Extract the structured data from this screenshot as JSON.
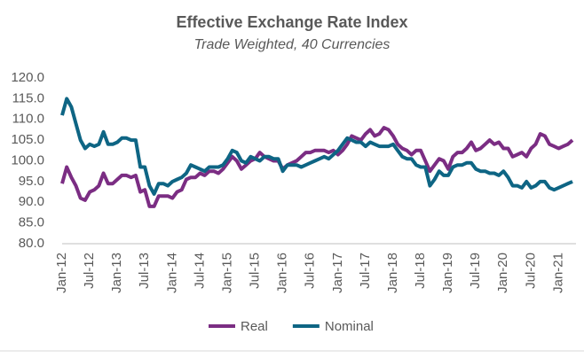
{
  "chart_data": {
    "type": "line",
    "title": "Effective Exchange Rate Index",
    "subtitle": "Trade Weighted, 40 Currencies",
    "categories": [
      "Jan-12",
      null,
      null,
      null,
      null,
      null,
      "Jul-12",
      null,
      null,
      null,
      null,
      null,
      "Jan-13",
      null,
      null,
      null,
      null,
      null,
      "Jul-13",
      null,
      null,
      null,
      null,
      null,
      "Jan-14",
      null,
      null,
      null,
      null,
      null,
      "Jul-14",
      null,
      null,
      null,
      null,
      null,
      "Jan-15",
      null,
      null,
      null,
      null,
      null,
      "Jul-15",
      null,
      null,
      null,
      null,
      null,
      "Jan-16",
      null,
      null,
      null,
      null,
      null,
      "Jul-16",
      null,
      null,
      null,
      null,
      null,
      "Jan-17",
      null,
      null,
      null,
      null,
      null,
      "Jul-17",
      null,
      null,
      null,
      null,
      null,
      "Jan-18",
      null,
      null,
      null,
      null,
      null,
      "Jul-18",
      null,
      null,
      null,
      null,
      null,
      "Jan-19",
      null,
      null,
      null,
      null,
      null,
      "Jul-19",
      null,
      null,
      null,
      null,
      null,
      "Jan-20",
      null,
      null,
      null,
      null,
      null,
      "Jul-20",
      null,
      null,
      null,
      null,
      null,
      "Jan-21",
      null,
      null,
      null
    ],
    "series": [
      {
        "name": "Real",
        "color": "#7b2d83",
        "values": [
          94.5,
          98.5,
          96,
          94,
          91,
          90.5,
          92.5,
          93,
          94,
          97,
          94.5,
          94.5,
          95.5,
          96.5,
          96.5,
          96,
          96.5,
          92.5,
          93,
          89,
          89,
          91.5,
          91.5,
          91.5,
          91,
          92.5,
          93,
          95.5,
          96,
          96,
          97,
          96.5,
          97.5,
          97.5,
          97,
          98,
          99.5,
          101,
          100,
          98,
          99,
          100,
          100.5,
          102,
          101,
          100.5,
          100,
          100,
          98,
          99,
          99.5,
          100,
          101,
          102,
          102,
          102.5,
          102.5,
          102.5,
          102,
          102.5,
          101.5,
          102.5,
          104,
          106,
          105.5,
          105,
          106.5,
          107.5,
          106,
          106.5,
          108,
          107.5,
          106,
          104,
          103,
          102.5,
          101.5,
          102.5,
          102.5,
          100,
          97.5,
          99,
          100.5,
          100,
          98,
          101,
          102,
          102,
          103,
          104.5,
          102.5,
          103,
          104,
          105,
          104,
          104.5,
          103,
          103,
          101,
          101.5,
          102,
          101,
          103,
          104,
          106.5,
          106,
          104,
          103.5,
          103,
          103.5,
          104,
          105
        ]
      },
      {
        "name": "Nominal",
        "color": "#0e6584",
        "values": [
          111,
          115,
          113,
          109,
          105,
          103,
          104,
          103.5,
          104,
          107,
          104,
          104,
          104.5,
          105.5,
          105.5,
          105,
          105,
          98.5,
          98.5,
          94,
          92,
          94.5,
          94.5,
          94,
          95,
          95.5,
          96,
          97,
          99,
          98.5,
          98,
          97.5,
          98.5,
          98.5,
          98.5,
          99,
          100.5,
          102.5,
          102,
          100,
          99.5,
          101,
          100.5,
          100,
          101,
          101,
          100.5,
          100.5,
          97.5,
          99,
          99,
          99,
          98.5,
          99,
          99.5,
          100,
          100.5,
          101,
          100.5,
          101.5,
          102.5,
          104,
          105.5,
          105,
          104.5,
          104.5,
          103.5,
          104.5,
          104,
          103.5,
          103.5,
          103.5,
          104,
          102.5,
          101,
          100.5,
          100.5,
          99,
          98.5,
          98.5,
          94,
          95.5,
          97.5,
          96.5,
          96.5,
          98.5,
          99,
          99,
          99.5,
          99.5,
          98,
          97.5,
          97.5,
          97,
          97,
          96.5,
          97.5,
          96,
          94,
          94,
          93.5,
          95,
          93.5,
          94,
          95,
          95,
          93.5,
          93,
          93.5,
          94,
          94.5,
          95
        ]
      }
    ],
    "ylim": [
      80,
      120
    ],
    "yticks": [
      {
        "value": 80,
        "label": "80.0"
      },
      {
        "value": 85,
        "label": "85.0"
      },
      {
        "value": 90,
        "label": "90.0"
      },
      {
        "value": 95,
        "label": "95.0"
      },
      {
        "value": 100,
        "label": "100.0"
      },
      {
        "value": 105,
        "label": "105.0"
      },
      {
        "value": 110,
        "label": "110.0"
      },
      {
        "value": 115,
        "label": "115.0"
      },
      {
        "value": 120,
        "label": "120.0"
      }
    ],
    "grid": false
  }
}
